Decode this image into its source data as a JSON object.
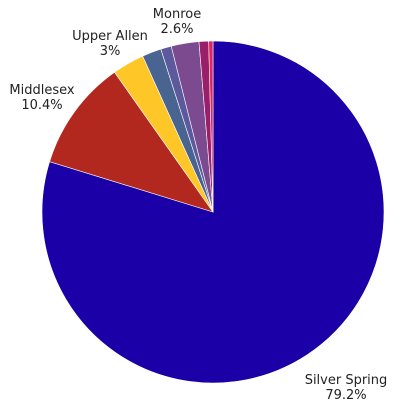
{
  "chart_data": {
    "type": "pie",
    "title": "",
    "start_angle_deg": 0,
    "direction": "clockwise",
    "slices": [
      {
        "label": "Silver Spring",
        "value": 79.2,
        "value_label": "79.2%",
        "color": "#1a00a6"
      },
      {
        "label": "Middlesex",
        "value": 10.4,
        "value_label": "10.4%",
        "color": "#b2281e"
      },
      {
        "label": "Upper Allen",
        "value": 3.0,
        "value_label": "3%",
        "color": "#ffc628"
      },
      {
        "label": "",
        "value": 1.8,
        "value_label": "",
        "color": "#4a6492"
      },
      {
        "label": "",
        "value": 1.0,
        "value_label": "",
        "color": "#5c5a9c"
      },
      {
        "label": "Monroe",
        "value": 2.6,
        "value_label": "2.6%",
        "color": "#7b4a8f"
      },
      {
        "label": "",
        "value": 0.9,
        "value_label": "",
        "color": "#9a1f6a"
      },
      {
        "label": "",
        "value": 0.4,
        "value_label": "",
        "color": "#e0245e"
      }
    ]
  }
}
